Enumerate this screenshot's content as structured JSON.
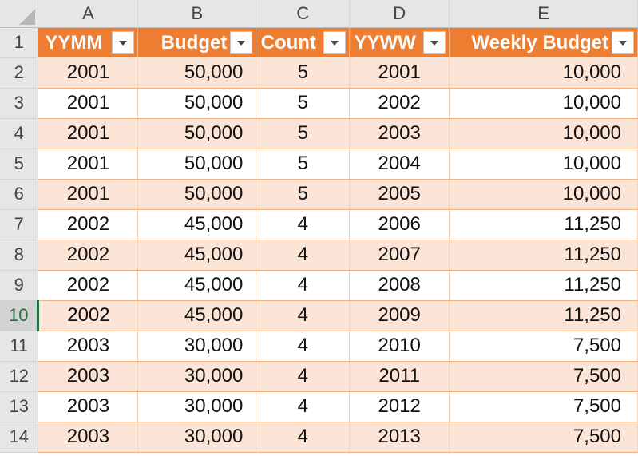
{
  "sheet": {
    "columns": [
      "A",
      "B",
      "C",
      "D",
      "E"
    ],
    "headers": [
      "YYMM",
      "Budget",
      "Count",
      "YYWW",
      "Weekly Budget"
    ],
    "rows": [
      {
        "num": "1"
      },
      {
        "num": "2",
        "cells": [
          "2001",
          "50,000",
          "5",
          "2001",
          "10,000"
        ]
      },
      {
        "num": "3",
        "cells": [
          "2001",
          "50,000",
          "5",
          "2002",
          "10,000"
        ]
      },
      {
        "num": "4",
        "cells": [
          "2001",
          "50,000",
          "5",
          "2003",
          "10,000"
        ]
      },
      {
        "num": "5",
        "cells": [
          "2001",
          "50,000",
          "5",
          "2004",
          "10,000"
        ]
      },
      {
        "num": "6",
        "cells": [
          "2001",
          "50,000",
          "5",
          "2005",
          "10,000"
        ]
      },
      {
        "num": "7",
        "cells": [
          "2002",
          "45,000",
          "4",
          "2006",
          "11,250"
        ]
      },
      {
        "num": "8",
        "cells": [
          "2002",
          "45,000",
          "4",
          "2007",
          "11,250"
        ]
      },
      {
        "num": "9",
        "cells": [
          "2002",
          "45,000",
          "4",
          "2008",
          "11,250"
        ]
      },
      {
        "num": "10",
        "cells": [
          "2002",
          "45,000",
          "4",
          "2009",
          "11,250"
        ]
      },
      {
        "num": "11",
        "cells": [
          "2003",
          "30,000",
          "4",
          "2010",
          "7,500"
        ]
      },
      {
        "num": "12",
        "cells": [
          "2003",
          "30,000",
          "4",
          "2011",
          "7,500"
        ]
      },
      {
        "num": "13",
        "cells": [
          "2003",
          "30,000",
          "4",
          "2012",
          "7,500"
        ]
      },
      {
        "num": "14",
        "cells": [
          "2003",
          "30,000",
          "4",
          "2013",
          "7,500"
        ]
      }
    ]
  },
  "colors": {
    "header_fill": "#ed7d31",
    "band_fill": "#fce4d6",
    "active_row_accent": "#217346"
  },
  "icons": {
    "filter": "filter-dropdown-icon",
    "select_all": "select-all-triangle-icon"
  }
}
